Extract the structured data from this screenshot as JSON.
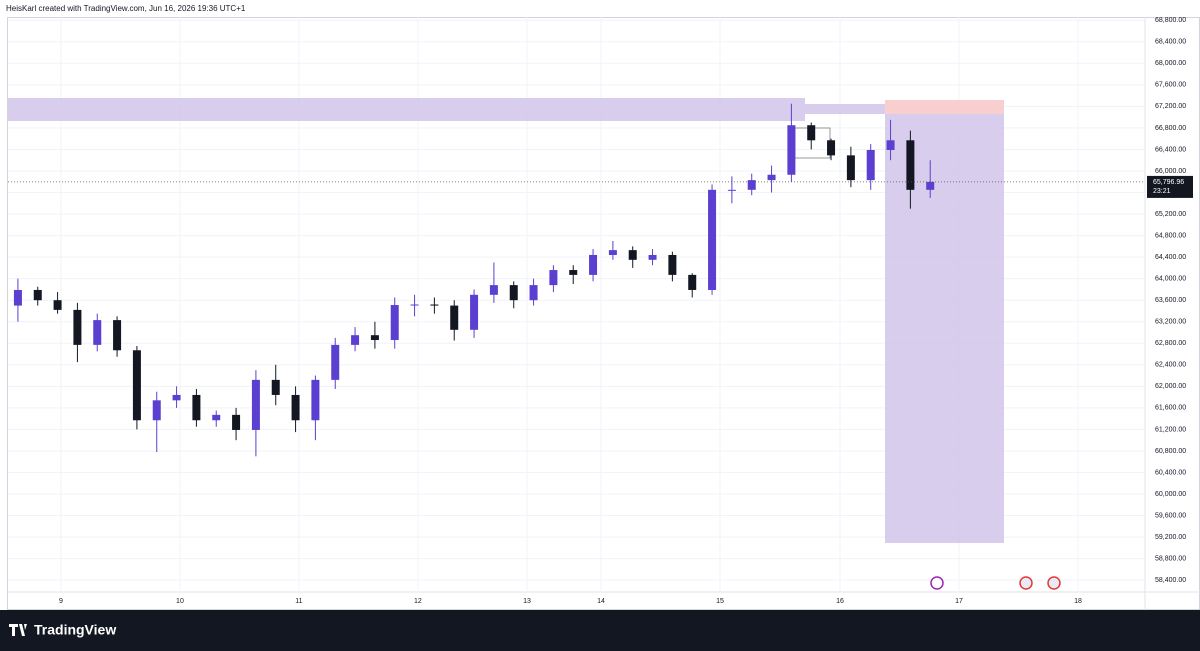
{
  "header": "HeisKarl created with TradingView.com, Jun 16, 2026 19:36 UTC+1",
  "footer_brand": "TradingView",
  "chart_data": {
    "type": "candlestick",
    "x": [
      0,
      1,
      2,
      3,
      4,
      5,
      6,
      7,
      8,
      9,
      10,
      11,
      12,
      13,
      14,
      15,
      16,
      17,
      18,
      19,
      20,
      21,
      22,
      23,
      24,
      25,
      26,
      27,
      28,
      29,
      30,
      31,
      32,
      33,
      34,
      35,
      36,
      37,
      38,
      39,
      40,
      41,
      42,
      43,
      44,
      45,
      46
    ],
    "series": [
      {
        "up_color": "#5b3fd0",
        "down_color": "#131722",
        "open": [
          63500,
          63790,
          63600,
          63420,
          62770,
          63230,
          62670,
          61370,
          61740,
          61840,
          61370,
          61470,
          61190,
          62120,
          61840,
          61370,
          62120,
          62770,
          62950,
          62860,
          63510,
          63520,
          63500,
          63050,
          63700,
          63880,
          63600,
          63880,
          64160,
          64070,
          64440,
          64530,
          64350,
          64440,
          64070,
          63790,
          65650,
          65650,
          65830,
          65930,
          66850,
          66570,
          66290,
          65830,
          66390,
          66570,
          65650
        ],
        "high": [
          64000,
          63850,
          63750,
          63550,
          63350,
          63300,
          62750,
          61900,
          62000,
          61950,
          61550,
          61600,
          62300,
          62400,
          62000,
          62200,
          62900,
          63100,
          63200,
          63650,
          63700,
          63650,
          63600,
          63800,
          64300,
          63950,
          64000,
          64250,
          64250,
          64550,
          64700,
          64600,
          64550,
          64500,
          64100,
          65750,
          65900,
          65950,
          66100,
          67250,
          66900,
          66600,
          66450,
          66500,
          66950,
          66750,
          66200
        ],
        "low": [
          63200,
          63500,
          63350,
          62450,
          62650,
          62550,
          61200,
          60780,
          61600,
          61250,
          61250,
          61000,
          60700,
          61650,
          61150,
          61000,
          61950,
          62650,
          62700,
          62700,
          63300,
          63350,
          62850,
          62900,
          63550,
          63450,
          63500,
          63750,
          63900,
          63950,
          64350,
          64200,
          64250,
          63950,
          63650,
          63700,
          65400,
          65550,
          65600,
          65800,
          66400,
          66200,
          65700,
          65650,
          66200,
          65300,
          65500
        ],
        "close": [
          63790,
          63600,
          63420,
          62770,
          63230,
          62670,
          61370,
          61740,
          61840,
          61370,
          61470,
          61190,
          62120,
          61840,
          61370,
          62120,
          62770,
          62950,
          62860,
          63510,
          63520,
          63500,
          63050,
          63700,
          63880,
          63600,
          63880,
          64160,
          64070,
          64440,
          64530,
          64350,
          64440,
          64070,
          63790,
          65650,
          65650,
          65830,
          65930,
          66850,
          66570,
          66290,
          65830,
          66390,
          66570,
          65650,
          65796.96
        ]
      }
    ],
    "last_price": {
      "value": 65796.96,
      "label": "65,796.96"
    },
    "countdown": "23:21",
    "xlim": [
      -0.5,
      56.83
    ],
    "xticks": [
      {
        "value": 2.17,
        "label": "9"
      },
      {
        "value": 8.17,
        "label": "10"
      },
      {
        "value": 14.17,
        "label": "11"
      },
      {
        "value": 20.17,
        "label": "12"
      },
      {
        "value": 25.67,
        "label": "13"
      },
      {
        "value": 29.4,
        "label": "14"
      },
      {
        "value": 35.4,
        "label": "15"
      },
      {
        "value": 41.45,
        "label": "16"
      },
      {
        "value": 47.45,
        "label": "17"
      },
      {
        "value": 53.45,
        "label": "18"
      }
    ],
    "ylim": [
      58180,
      68860
    ],
    "yticks": [
      {
        "value": 58400,
        "label": "58,400.00"
      },
      {
        "value": 58800,
        "label": "58,800.00"
      },
      {
        "value": 59200,
        "label": "59,200.00"
      },
      {
        "value": 59600,
        "label": "59,600.00"
      },
      {
        "value": 60000,
        "label": "60,000.00"
      },
      {
        "value": 60400,
        "label": "60,400.00"
      },
      {
        "value": 60800,
        "label": "60,800.00"
      },
      {
        "value": 61200,
        "label": "61,200.00"
      },
      {
        "value": 61600,
        "label": "61,600.00"
      },
      {
        "value": 62000,
        "label": "62,000.00"
      },
      {
        "value": 62400,
        "label": "62,400.00"
      },
      {
        "value": 62800,
        "label": "62,800.00"
      },
      {
        "value": 63200,
        "label": "63,200.00"
      },
      {
        "value": 63600,
        "label": "63,600.00"
      },
      {
        "value": 64000,
        "label": "64,000.00"
      },
      {
        "value": 64400,
        "label": "64,400.00"
      },
      {
        "value": 64800,
        "label": "64,800.00"
      },
      {
        "value": 65200,
        "label": "65,200.00"
      },
      {
        "value": 65600,
        "label": "65,600.00"
      },
      {
        "value": 66000,
        "label": "66,000.00"
      },
      {
        "value": 66400,
        "label": "66,400.00"
      },
      {
        "value": 66800,
        "label": "66,800.00"
      },
      {
        "value": 67200,
        "label": "67,200.00"
      },
      {
        "value": 67600,
        "label": "67,600.00"
      },
      {
        "value": 68000,
        "label": "68,000.00"
      },
      {
        "value": 68400,
        "label": "68,400.00"
      },
      {
        "value": 68800,
        "label": "68,800.00"
      }
    ],
    "grid": true
  }
}
